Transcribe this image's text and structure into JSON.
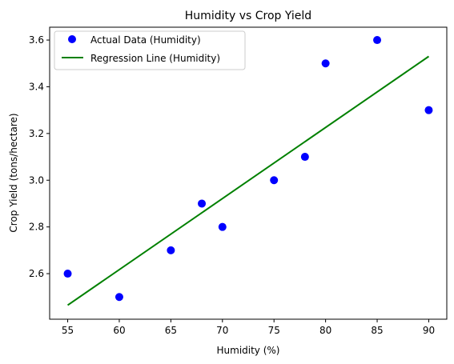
{
  "chart_data": {
    "type": "scatter",
    "title": "Humidity vs Crop Yield",
    "xlabel": "Humidity (%)",
    "ylabel": "Crop Yield (tons/hectare)",
    "xlim": [
      53.25,
      91.75
    ],
    "ylim": [
      2.405,
      3.655
    ],
    "xticks": [
      55,
      60,
      65,
      70,
      75,
      80,
      85,
      90
    ],
    "yticks": [
      2.6,
      2.8,
      3.0,
      3.2,
      3.4,
      3.6
    ],
    "grid": false,
    "legend_position": "top-left",
    "series": [
      {
        "name": "Actual Data (Humidity)",
        "kind": "scatter",
        "color": "#0000ff",
        "x": [
          55,
          60,
          65,
          68,
          70,
          75,
          78,
          80,
          85,
          90
        ],
        "y": [
          2.6,
          2.5,
          2.7,
          2.9,
          2.8,
          3.0,
          3.1,
          3.5,
          3.6,
          3.3
        ]
      },
      {
        "name": "Regression Line (Humidity)",
        "kind": "line",
        "color": "#008000",
        "x": [
          55,
          90
        ],
        "y": [
          2.465,
          3.53
        ]
      }
    ]
  }
}
